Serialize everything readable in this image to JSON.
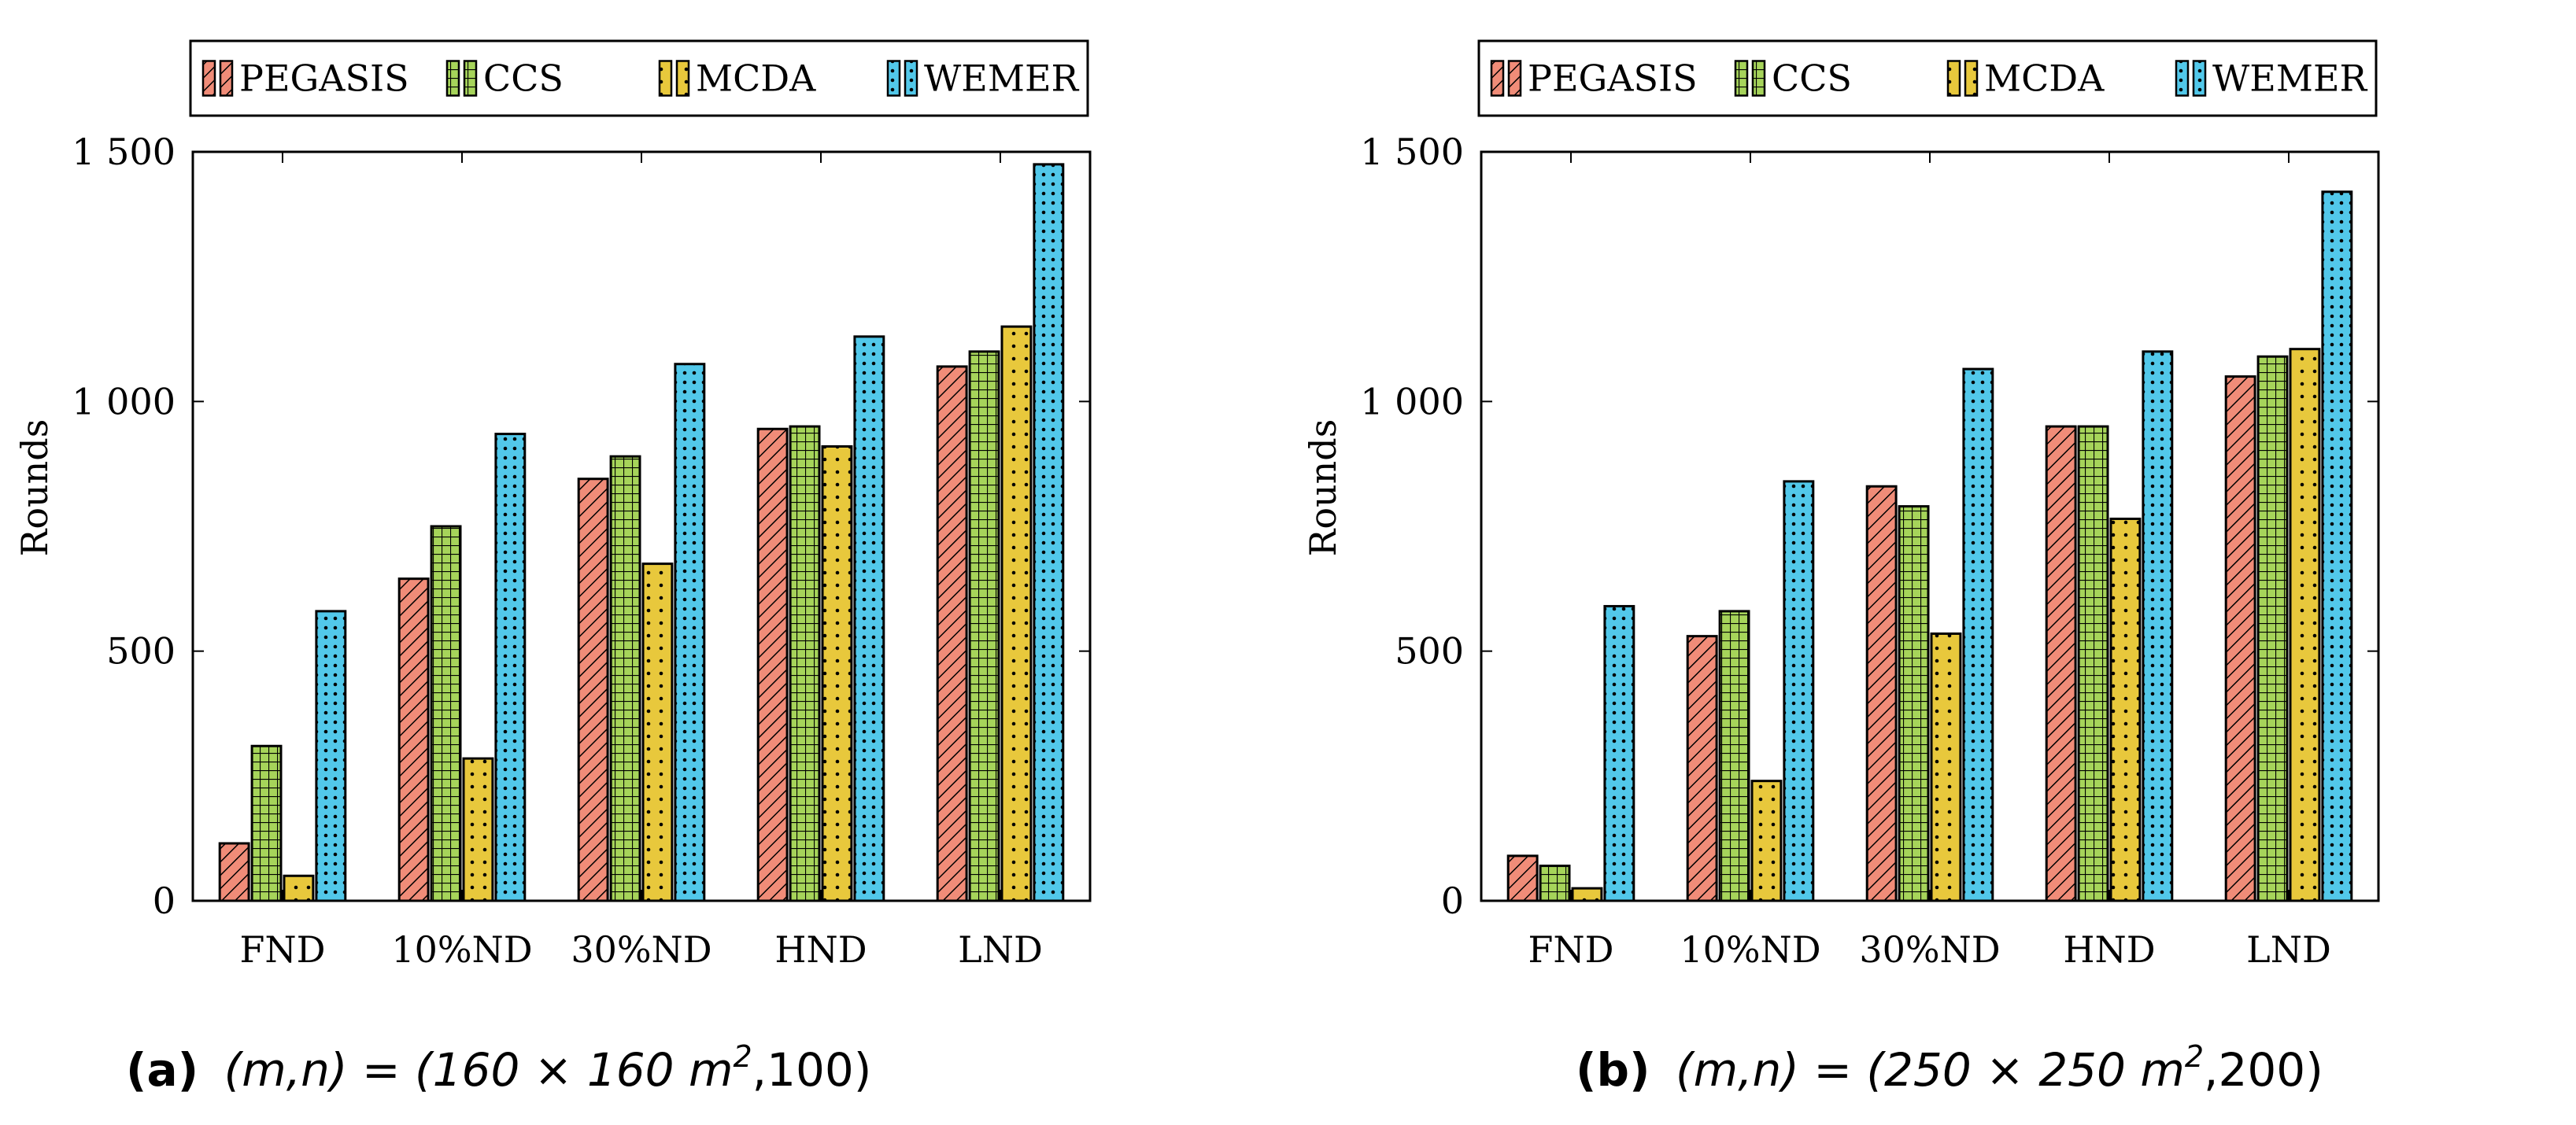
{
  "colors": {
    "PEGASIS": "#f08c78",
    "CCS": "#a6d45a",
    "MCDA": "#e8c83c",
    "WEMER": "#52c8ea",
    "axis": "#000000"
  },
  "patterns": {
    "PEGASIS": "diagonal-hatch",
    "CCS": "grid",
    "MCDA": "dots",
    "WEMER": "dots"
  },
  "chart_data": [
    {
      "type": "bar",
      "subfigure_label": "(a)",
      "caption": "(m,n) = (160 × 160 m²,100)",
      "caption_parts": {
        "pre": "(m,n) = (160 × 160 m",
        "sup": "2",
        "post": ",100)"
      },
      "categories": [
        "FND",
        "10%ND",
        "30%ND",
        "HND",
        "LND"
      ],
      "series": [
        {
          "name": "PEGASIS",
          "values": [
            115,
            645,
            845,
            945,
            1070
          ]
        },
        {
          "name": "CCS",
          "values": [
            310,
            750,
            890,
            950,
            1100
          ]
        },
        {
          "name": "MCDA",
          "values": [
            50,
            285,
            675,
            910,
            1150
          ]
        },
        {
          "name": "WEMER",
          "values": [
            580,
            935,
            1075,
            1130,
            1475
          ]
        }
      ],
      "ylabel": "Rounds",
      "ylim": [
        0,
        1500
      ],
      "yticks": [
        0,
        500,
        1000,
        1500
      ],
      "ytick_labels": [
        "0",
        "500",
        "1 000",
        "1 500"
      ],
      "legend_position": "top",
      "grid": false
    },
    {
      "type": "bar",
      "subfigure_label": "(b)",
      "caption": "(m,n) = (250 × 250 m²,200)",
      "caption_parts": {
        "pre": "(m,n) = (250 × 250 m",
        "sup": "2",
        "post": ",200)"
      },
      "categories": [
        "FND",
        "10%ND",
        "30%ND",
        "HND",
        "LND"
      ],
      "series": [
        {
          "name": "PEGASIS",
          "values": [
            90,
            530,
            830,
            950,
            1050
          ]
        },
        {
          "name": "CCS",
          "values": [
            70,
            580,
            790,
            950,
            1090
          ]
        },
        {
          "name": "MCDA",
          "values": [
            25,
            240,
            535,
            765,
            1105
          ]
        },
        {
          "name": "WEMER",
          "values": [
            590,
            840,
            1065,
            1100,
            1420
          ]
        }
      ],
      "ylabel": "Rounds",
      "ylim": [
        0,
        1500
      ],
      "yticks": [
        0,
        500,
        1000,
        1500
      ],
      "ytick_labels": [
        "0",
        "500",
        "1 000",
        "1 500"
      ],
      "legend_position": "top",
      "grid": false
    }
  ]
}
